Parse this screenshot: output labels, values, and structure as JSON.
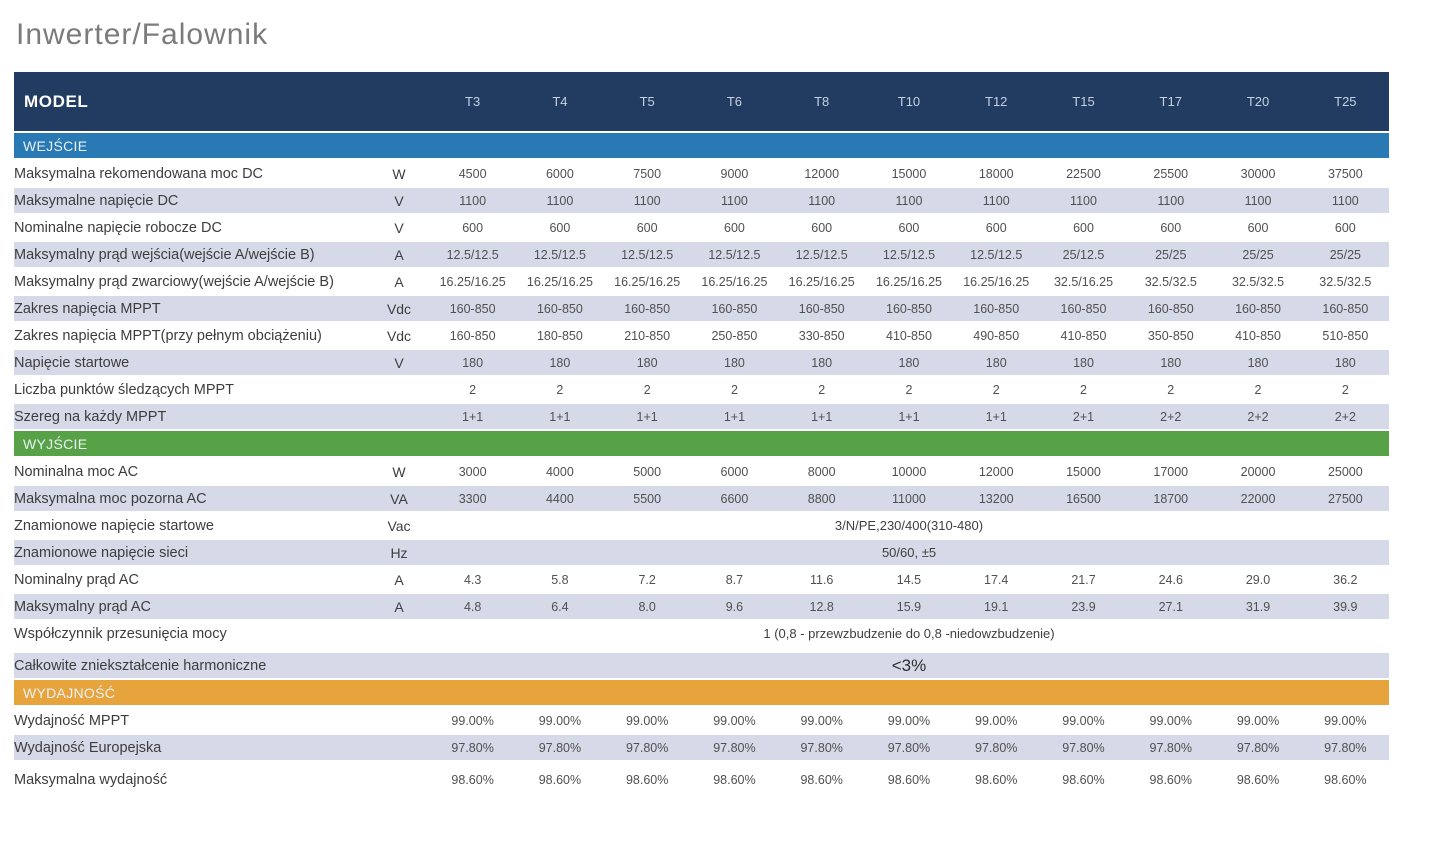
{
  "page": {
    "title": "Inwerter/Falownik"
  },
  "colors": {
    "header_navy": "#223b60",
    "section_input_blue": "#2879b4",
    "section_output_green": "#57a246",
    "section_efficiency_orange": "#e7a43c",
    "stripe": "#d6dae8"
  },
  "table": {
    "header": {
      "model_label": "MODEL",
      "columns": [
        "T3",
        "T4",
        "T5",
        "T6",
        "T8",
        "T10",
        "T12",
        "T15",
        "T17",
        "T20",
        "T25"
      ]
    },
    "sections": [
      {
        "name": "WEJŚCIE",
        "color": "#2879b4",
        "rows": [
          {
            "label": "Maksymalna rekomendowana moc DC",
            "unit": "W",
            "values": [
              "4500",
              "6000",
              "7500",
              "9000",
              "12000",
              "15000",
              "18000",
              "22500",
              "25500",
              "30000",
              "37500"
            ]
          },
          {
            "label": "Maksymalne napięcie DC",
            "unit": "V",
            "values": [
              "1100",
              "1100",
              "1100",
              "1100",
              "1100",
              "1100",
              "1100",
              "1100",
              "1100",
              "1100",
              "1100"
            ]
          },
          {
            "label": "Nominalne napięcie robocze DC",
            "unit": "V",
            "values": [
              "600",
              "600",
              "600",
              "600",
              "600",
              "600",
              "600",
              "600",
              "600",
              "600",
              "600"
            ]
          },
          {
            "label": "Maksymalny prąd wejścia(wejście A/wejście B)",
            "unit": "A",
            "values": [
              "12.5/12.5",
              "12.5/12.5",
              "12.5/12.5",
              "12.5/12.5",
              "12.5/12.5",
              "12.5/12.5",
              "12.5/12.5",
              "25/12.5",
              "25/25",
              "25/25",
              "25/25"
            ]
          },
          {
            "label": "Maksymalny prąd zwarciowy(wejście A/wejście B)",
            "unit": "A",
            "values": [
              "16.25/16.25",
              "16.25/16.25",
              "16.25/16.25",
              "16.25/16.25",
              "16.25/16.25",
              "16.25/16.25",
              "16.25/16.25",
              "32.5/16.25",
              "32.5/32.5",
              "32.5/32.5",
              "32.5/32.5"
            ]
          },
          {
            "label": "Zakres napięcia MPPT",
            "unit": "Vdc",
            "values": [
              "160-850",
              "160-850",
              "160-850",
              "160-850",
              "160-850",
              "160-850",
              "160-850",
              "160-850",
              "160-850",
              "160-850",
              "160-850"
            ]
          },
          {
            "label": "Zakres napięcia MPPT(przy pełnym obciążeniu)",
            "unit": "Vdc",
            "values": [
              "160-850",
              "180-850",
              "210-850",
              "250-850",
              "330-850",
              "410-850",
              "490-850",
              "410-850",
              "350-850",
              "410-850",
              "510-850"
            ]
          },
          {
            "label": "Napięcie startowe",
            "unit": "V",
            "values": [
              "180",
              "180",
              "180",
              "180",
              "180",
              "180",
              "180",
              "180",
              "180",
              "180",
              "180"
            ]
          },
          {
            "label": "Liczba punktów śledzących MPPT",
            "unit": "",
            "values": [
              "2",
              "2",
              "2",
              "2",
              "2",
              "2",
              "2",
              "2",
              "2",
              "2",
              "2"
            ]
          },
          {
            "label": "Szereg na każdy MPPT",
            "unit": "",
            "values": [
              "1+1",
              "1+1",
              "1+1",
              "1+1",
              "1+1",
              "1+1",
              "1+1",
              "2+1",
              "2+2",
              "2+2",
              "2+2"
            ]
          }
        ]
      },
      {
        "name": "WYJŚCIE",
        "color": "#57a246",
        "rows": [
          {
            "label": "Nominalna moc AC",
            "unit": "W",
            "values": [
              "3000",
              "4000",
              "5000",
              "6000",
              "8000",
              "10000",
              "12000",
              "15000",
              "17000",
              "20000",
              "25000"
            ]
          },
          {
            "label": "Maksymalna moc pozorna AC",
            "unit": "VA",
            "values": [
              "3300",
              "4400",
              "5500",
              "6600",
              "8800",
              "11000",
              "13200",
              "16500",
              "18700",
              "22000",
              "27500"
            ]
          },
          {
            "label": "Znamionowe napięcie startowe",
            "unit": "Vac",
            "span": "3/N/PE,230/400(310-480)"
          },
          {
            "label": "Znamionowe napięcie sieci",
            "unit": "Hz",
            "span": "50/60, ±5"
          },
          {
            "label": "Nominalny prąd AC",
            "unit": "A",
            "values": [
              "4.3",
              "5.8",
              "7.2",
              "8.7",
              "11.6",
              "14.5",
              "17.4",
              "21.7",
              "24.6",
              "29.0",
              "36.2"
            ]
          },
          {
            "label": "Maksymalny prąd AC",
            "unit": "A",
            "values": [
              "4.8",
              "6.4",
              "8.0",
              "9.6",
              "12.8",
              "15.9",
              "19.1",
              "23.9",
              "27.1",
              "31.9",
              "39.9"
            ]
          },
          {
            "label": "Współczynnik przesunięcia mocy",
            "unit": "",
            "span": "1 (0,8 - przewzbudzenie do 0,8 -niedowzbudzenie)",
            "gap_after": true
          },
          {
            "label": "Całkowite zniekształcenie harmoniczne",
            "unit": "",
            "span": "<3%",
            "big": true
          }
        ]
      },
      {
        "name": "WYDAJNOŚĆ",
        "color": "#e7a43c",
        "rows": [
          {
            "label": "Wydajność MPPT",
            "unit": "",
            "values": [
              "99.00%",
              "99.00%",
              "99.00%",
              "99.00%",
              "99.00%",
              "99.00%",
              "99.00%",
              "99.00%",
              "99.00%",
              "99.00%",
              "99.00%"
            ]
          },
          {
            "label": "Wydajność Europejska",
            "unit": "",
            "values": [
              "97.80%",
              "97.80%",
              "97.80%",
              "97.80%",
              "97.80%",
              "97.80%",
              "97.80%",
              "97.80%",
              "97.80%",
              "97.80%",
              "97.80%"
            ],
            "gap_after": true
          },
          {
            "label": "Maksymalna wydajność",
            "unit": "",
            "values": [
              "98.60%",
              "98.60%",
              "98.60%",
              "98.60%",
              "98.60%",
              "98.60%",
              "98.60%",
              "98.60%",
              "98.60%",
              "98.60%",
              "98.60%"
            ]
          }
        ]
      }
    ]
  }
}
